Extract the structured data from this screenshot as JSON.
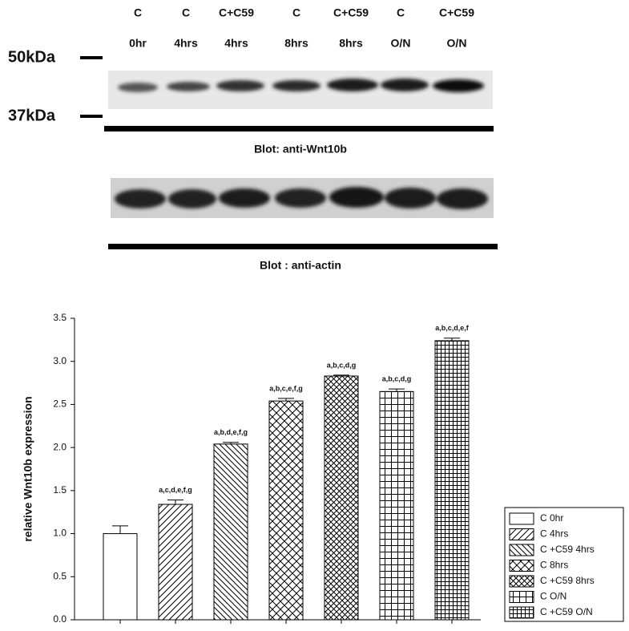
{
  "blot": {
    "lanes": [
      {
        "top": "C",
        "bottom": "0hr"
      },
      {
        "top": "C",
        "bottom": "4hrs"
      },
      {
        "top": "C+C59",
        "bottom": "4hrs"
      },
      {
        "top": "C",
        "bottom": "8hrs"
      },
      {
        "top": "C+C59",
        "bottom": "8hrs"
      },
      {
        "top": "C",
        "bottom": "O/N"
      },
      {
        "top": "C+C59",
        "bottom": "O/N"
      }
    ],
    "markers": [
      "50kDa",
      "37kDa"
    ],
    "captions": [
      "Blot: anti-Wnt10b",
      "Blot : anti-actin"
    ]
  },
  "chart_data": {
    "type": "bar",
    "y_label": "relative Wnt10b expression",
    "categories": [
      null,
      null,
      null,
      null,
      null,
      null,
      null
    ],
    "values": [
      1.0,
      1.34,
      2.04,
      2.54,
      2.83,
      2.65,
      3.24
    ],
    "errors": [
      0.09,
      0.05,
      0.02,
      0.03,
      0.01,
      0.03,
      0.03
    ],
    "annotations": [
      null,
      "a,c,d,e,f,g",
      "a,b,d,e,f,g",
      "a,b,c,e,f,g",
      "a,b,c,d,g",
      "a,b,c,d,g",
      "a,b,c,d,e,f"
    ],
    "legend": [
      "C 0hr",
      "C 4hrs",
      "C +C59 4hrs",
      "C 8hrs",
      "C +C59 8hrs",
      "C O/N",
      "C +C59 O/N"
    ],
    "patterns": [
      "none",
      "hatch-up",
      "hatch-down",
      "cross-diag",
      "cross-diag-dense",
      "grid",
      "grid-dense"
    ],
    "color": "#000000",
    "ylim": [
      0,
      3.5
    ],
    "yticks": [
      {
        "value": 0,
        "label": "0.0"
      },
      0.5,
      {
        "value": 1,
        "label": "1.0"
      },
      1.5,
      {
        "value": 2,
        "label": "2.0"
      },
      2.5,
      {
        "value": 3,
        "label": "3.0"
      },
      3.5
    ],
    "legend_position": "lower right"
  }
}
